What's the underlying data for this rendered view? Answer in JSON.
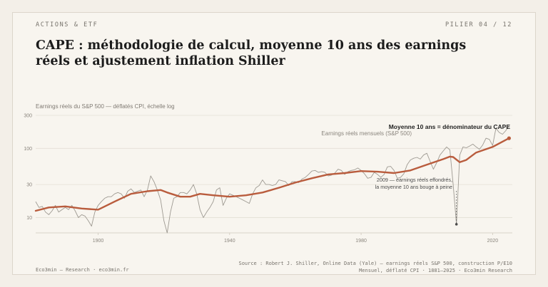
{
  "header": {
    "kicker": "ACTIONS & ETF",
    "pager": "PILIER 04 / 12",
    "title": "CAPE : méthodologie de calcul, moyenne 10 ans des earnings réels et ajustement inflation Shiller"
  },
  "footer": {
    "left": "Eco3min — Research · eco3min.fr",
    "right_line1": "Source : Robert J. Shiller, Online Data (Yale) — earnings réels S&P 500, construction P/E10",
    "right_line2": "Mensuel, déflaté CPI · 1881–2025 · Eco3min Research"
  },
  "colors": {
    "monthly": "#9e9a92",
    "avg10": "#b95c3d",
    "grid": "#e4dfd5",
    "annotation": "#4a4a4a"
  },
  "chart_data": {
    "type": "line",
    "subtitle": "Earnings réels du S&P 500 — déflatés CPI, échelle log",
    "xlim": [
      1881,
      2026
    ],
    "ylim": [
      6,
      300
    ],
    "yscale": "log",
    "x_ticks": [
      1900,
      1940,
      1980,
      2020
    ],
    "y_ticks": [
      10,
      30,
      100,
      300
    ],
    "grid": true,
    "series": [
      {
        "name": "Earnings réels mensuels (S&P 500)",
        "style": "thin",
        "points": [
          [
            1881,
            17
          ],
          [
            1882,
            14
          ],
          [
            1883,
            14.5
          ],
          [
            1884,
            12
          ],
          [
            1885,
            11
          ],
          [
            1886,
            12.5
          ],
          [
            1887,
            15
          ],
          [
            1888,
            12
          ],
          [
            1889,
            13
          ],
          [
            1890,
            14
          ],
          [
            1891,
            13
          ],
          [
            1892,
            15
          ],
          [
            1893,
            12.5
          ],
          [
            1894,
            10
          ],
          [
            1895,
            11
          ],
          [
            1896,
            10.5
          ],
          [
            1897,
            9
          ],
          [
            1898,
            7.5
          ],
          [
            1899,
            12
          ],
          [
            1900,
            15
          ],
          [
            1901,
            17
          ],
          [
            1902,
            19
          ],
          [
            1903,
            20
          ],
          [
            1904,
            20
          ],
          [
            1905,
            22
          ],
          [
            1906,
            23
          ],
          [
            1907,
            22
          ],
          [
            1908,
            19
          ],
          [
            1909,
            24
          ],
          [
            1910,
            26
          ],
          [
            1911,
            23
          ],
          [
            1912,
            24
          ],
          [
            1913,
            25
          ],
          [
            1914,
            20
          ],
          [
            1915,
            25
          ],
          [
            1916,
            40
          ],
          [
            1917,
            33
          ],
          [
            1918,
            25
          ],
          [
            1919,
            18
          ],
          [
            1920,
            9
          ],
          [
            1921,
            6
          ],
          [
            1922,
            12
          ],
          [
            1923,
            19
          ],
          [
            1924,
            20
          ],
          [
            1925,
            23
          ],
          [
            1926,
            23
          ],
          [
            1927,
            22
          ],
          [
            1928,
            25
          ],
          [
            1929,
            30
          ],
          [
            1930,
            22
          ],
          [
            1931,
            13
          ],
          [
            1932,
            10
          ],
          [
            1933,
            12
          ],
          [
            1934,
            14
          ],
          [
            1935,
            17
          ],
          [
            1936,
            25
          ],
          [
            1937,
            27
          ],
          [
            1938,
            15
          ],
          [
            1939,
            19
          ],
          [
            1940,
            22
          ],
          [
            1941,
            21
          ],
          [
            1942,
            20
          ],
          [
            1943,
            19
          ],
          [
            1944,
            18
          ],
          [
            1945,
            17
          ],
          [
            1946,
            16
          ],
          [
            1947,
            22
          ],
          [
            1948,
            27
          ],
          [
            1949,
            29
          ],
          [
            1950,
            35
          ],
          [
            1951,
            30
          ],
          [
            1952,
            30
          ],
          [
            1953,
            29
          ],
          [
            1954,
            30
          ],
          [
            1955,
            35
          ],
          [
            1956,
            34
          ],
          [
            1957,
            33
          ],
          [
            1958,
            29
          ],
          [
            1959,
            33
          ],
          [
            1960,
            33
          ],
          [
            1961,
            32
          ],
          [
            1962,
            36
          ],
          [
            1963,
            38
          ],
          [
            1964,
            42
          ],
          [
            1965,
            47
          ],
          [
            1966,
            48
          ],
          [
            1967,
            45
          ],
          [
            1968,
            46
          ],
          [
            1969,
            45
          ],
          [
            1970,
            40
          ],
          [
            1971,
            41
          ],
          [
            1972,
            44
          ],
          [
            1973,
            50
          ],
          [
            1974,
            48
          ],
          [
            1975,
            42
          ],
          [
            1976,
            46
          ],
          [
            1977,
            48
          ],
          [
            1978,
            49
          ],
          [
            1979,
            52
          ],
          [
            1980,
            48
          ],
          [
            1981,
            43
          ],
          [
            1982,
            37
          ],
          [
            1983,
            38
          ],
          [
            1984,
            45
          ],
          [
            1985,
            42
          ],
          [
            1986,
            38
          ],
          [
            1987,
            42
          ],
          [
            1988,
            54
          ],
          [
            1989,
            55
          ],
          [
            1990,
            48
          ],
          [
            1991,
            37
          ],
          [
            1992,
            38
          ],
          [
            1993,
            43
          ],
          [
            1994,
            58
          ],
          [
            1995,
            68
          ],
          [
            1996,
            72
          ],
          [
            1997,
            74
          ],
          [
            1998,
            70
          ],
          [
            1999,
            80
          ],
          [
            2000,
            85
          ],
          [
            2001,
            65
          ],
          [
            2002,
            50
          ],
          [
            2003,
            62
          ],
          [
            2004,
            80
          ],
          [
            2005,
            92
          ],
          [
            2006,
            105
          ],
          [
            2007,
            95
          ],
          [
            2008,
            30
          ],
          [
            2009,
            8
          ],
          [
            2010,
            80
          ],
          [
            2011,
            105
          ],
          [
            2012,
            102
          ],
          [
            2013,
            108
          ],
          [
            2014,
            115
          ],
          [
            2015,
            105
          ],
          [
            2016,
            97
          ],
          [
            2017,
            112
          ],
          [
            2018,
            140
          ],
          [
            2019,
            135
          ],
          [
            2020,
            110
          ],
          [
            2021,
            195
          ],
          [
            2022,
            170
          ],
          [
            2023,
            160
          ],
          [
            2024,
            180
          ],
          [
            2025,
            215
          ]
        ]
      },
      {
        "name": "Moyenne 10 ans = dénominateur du CAPE",
        "style": "thick",
        "points": [
          [
            1881,
            12.5
          ],
          [
            1885,
            14
          ],
          [
            1890,
            14.5
          ],
          [
            1895,
            13.5
          ],
          [
            1900,
            13
          ],
          [
            1905,
            17
          ],
          [
            1910,
            22
          ],
          [
            1915,
            24
          ],
          [
            1919,
            25
          ],
          [
            1921,
            23
          ],
          [
            1925,
            20
          ],
          [
            1928,
            20
          ],
          [
            1931,
            22
          ],
          [
            1935,
            21
          ],
          [
            1940,
            20
          ],
          [
            1945,
            21
          ],
          [
            1950,
            23
          ],
          [
            1955,
            27
          ],
          [
            1960,
            32
          ],
          [
            1965,
            37
          ],
          [
            1970,
            42
          ],
          [
            1975,
            44
          ],
          [
            1980,
            47
          ],
          [
            1985,
            46
          ],
          [
            1990,
            44
          ],
          [
            1995,
            48
          ],
          [
            2000,
            58
          ],
          [
            2005,
            70
          ],
          [
            2007,
            76
          ],
          [
            2008,
            75
          ],
          [
            2010,
            63
          ],
          [
            2012,
            68
          ],
          [
            2015,
            87
          ],
          [
            2020,
            105
          ],
          [
            2023,
            125
          ],
          [
            2025,
            140
          ]
        ]
      }
    ],
    "annotations": [
      "2009 — earnings réels effondrés,",
      "la moyenne 10 ans bouge à peine"
    ]
  }
}
